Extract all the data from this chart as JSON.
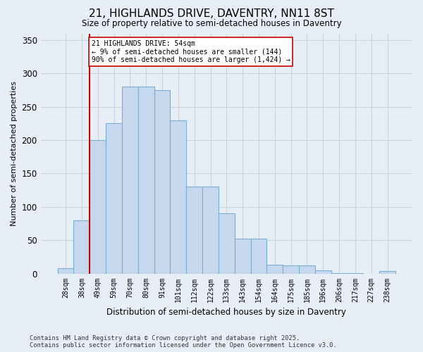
{
  "title": "21, HIGHLANDS DRIVE, DAVENTRY, NN11 8ST",
  "subtitle": "Size of property relative to semi-detached houses in Daventry",
  "xlabel": "Distribution of semi-detached houses by size in Daventry",
  "ylabel": "Number of semi-detached properties",
  "categories": [
    "28sqm",
    "38sqm",
    "49sqm",
    "59sqm",
    "70sqm",
    "80sqm",
    "91sqm",
    "101sqm",
    "112sqm",
    "122sqm",
    "133sqm",
    "143sqm",
    "154sqm",
    "164sqm",
    "175sqm",
    "185sqm",
    "196sqm",
    "206sqm",
    "217sqm",
    "227sqm",
    "238sqm"
  ],
  "values": [
    8,
    80,
    200,
    225,
    280,
    280,
    275,
    230,
    130,
    130,
    90,
    52,
    52,
    13,
    12,
    12,
    5,
    1,
    1,
    0,
    4
  ],
  "bar_color": "#c5d8ee",
  "bar_edge_color": "#7aafd4",
  "grid_color": "#c8d4e0",
  "annotation_line_color": "#cc0000",
  "annotation_text": "21 HIGHLANDS DRIVE: 54sqm\n← 9% of semi-detached houses are smaller (144)\n90% of semi-detached houses are larger (1,424) →",
  "annotation_box_color": "#ffffff",
  "annotation_box_edge_color": "#cc0000",
  "footer": "Contains HM Land Registry data © Crown copyright and database right 2025.\nContains public sector information licensed under the Open Government Licence v3.0.",
  "ylim": [
    0,
    360
  ],
  "yticks": [
    0,
    50,
    100,
    150,
    200,
    250,
    300,
    350
  ],
  "bg_color": "#e8eef6",
  "plot_bg_color": "#e8eef6"
}
